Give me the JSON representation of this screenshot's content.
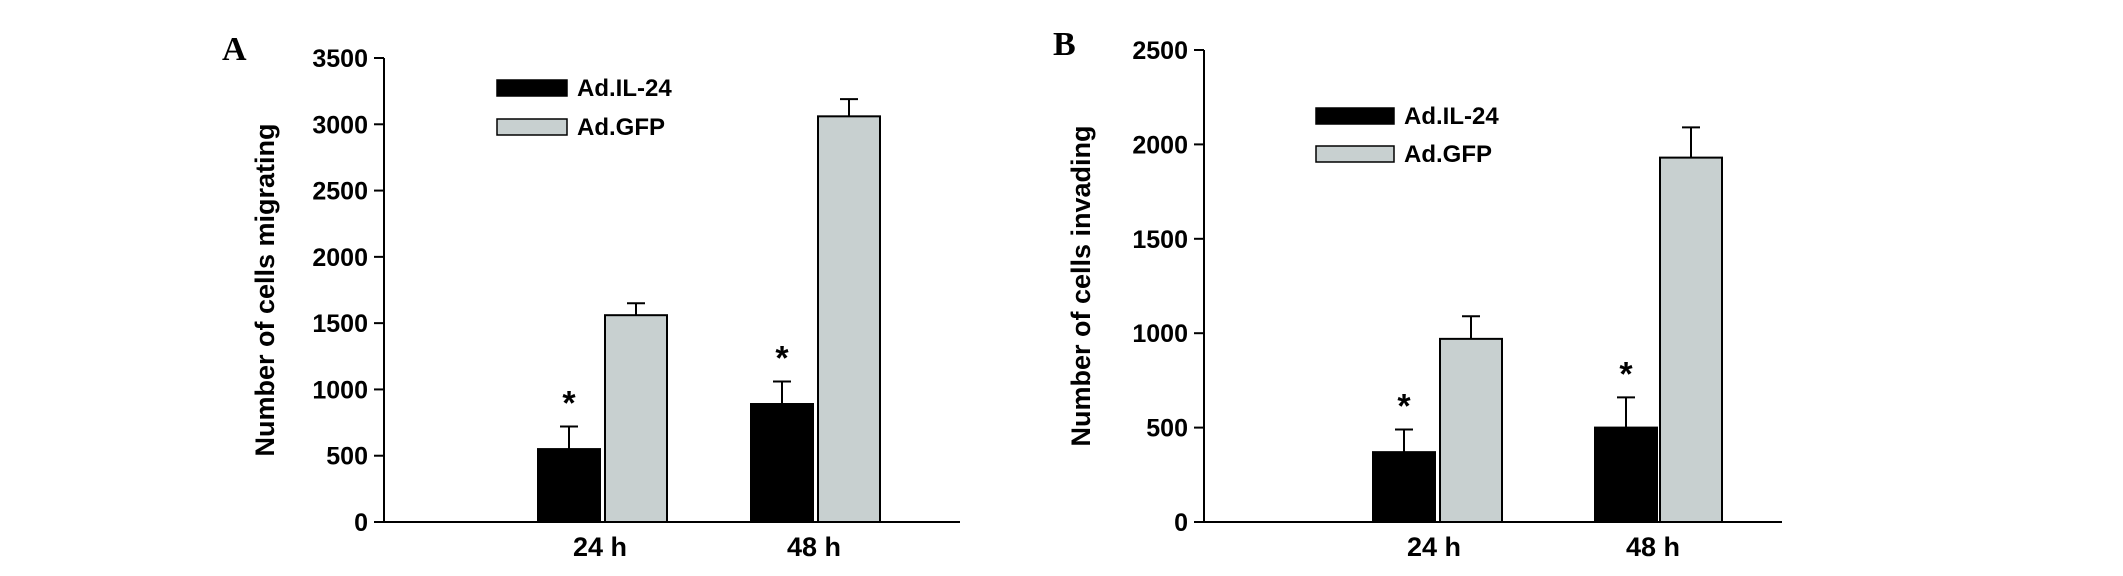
{
  "figure": {
    "panels": [
      {
        "letter": "A",
        "chart_data": {
          "type": "bar",
          "title": "",
          "xlabel": "",
          "ylabel": "Number of cells migrating",
          "categories": [
            "24 h",
            "48 h"
          ],
          "ylim": [
            0,
            3500
          ],
          "yticks": [
            0,
            500,
            1000,
            1500,
            2000,
            2500,
            3000,
            3500
          ],
          "series": [
            {
              "name": "Ad.IL-24",
              "values": [
                550,
                890
              ],
              "errors": [
                170,
                170
              ],
              "color": "#000000"
            },
            {
              "name": "Ad.GFP",
              "values": [
                1560,
                3060
              ],
              "errors": [
                90,
                130
              ],
              "color": "#c8d0d0"
            }
          ],
          "significance": [
            {
              "series": 0,
              "category": 0,
              "marker": "*"
            },
            {
              "series": 0,
              "category": 1,
              "marker": "*"
            }
          ],
          "legend": "top-left inside plot",
          "grid": false
        }
      },
      {
        "letter": "B",
        "chart_data": {
          "type": "bar",
          "title": "",
          "xlabel": "",
          "ylabel": "Number of cells invading",
          "categories": [
            "24 h",
            "48 h"
          ],
          "ylim": [
            0,
            2500
          ],
          "yticks": [
            0,
            500,
            1000,
            1500,
            2000,
            2500
          ],
          "series": [
            {
              "name": "Ad.IL-24",
              "values": [
                370,
                500
              ],
              "errors": [
                120,
                160
              ],
              "color": "#000000"
            },
            {
              "name": "Ad.GFP",
              "values": [
                970,
                1930
              ],
              "errors": [
                120,
                160
              ],
              "color": "#c8d0d0"
            }
          ],
          "significance": [
            {
              "series": 0,
              "category": 0,
              "marker": "*"
            },
            {
              "series": 0,
              "category": 1,
              "marker": "*"
            }
          ],
          "legend": "top-left inside plot",
          "grid": false
        }
      }
    ]
  }
}
